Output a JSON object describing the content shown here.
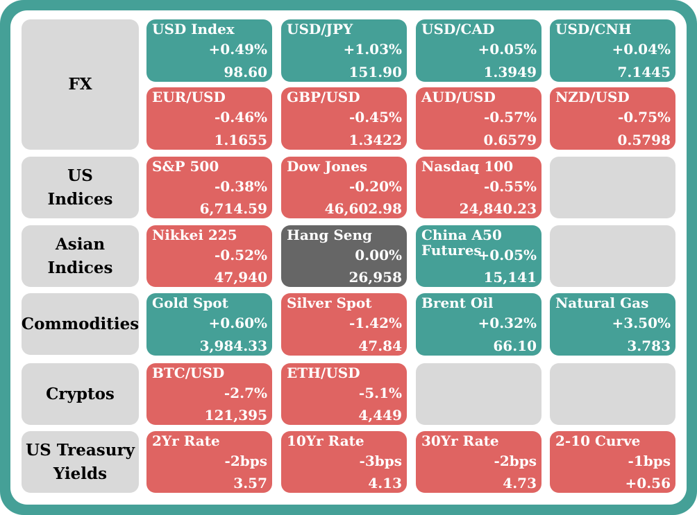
{
  "categories": {
    "fx": "FX",
    "us_indices": "US\nIndices",
    "asian_indices": "Asian\nIndices",
    "commodities": "Commodities",
    "cryptos": "Cryptos",
    "treasury": "US Treasury\nYields"
  },
  "colors": {
    "positive": "#45a097",
    "negative": "#df6462",
    "neutral": "#666666",
    "empty": "#d9d9d9",
    "frame": "#45a097"
  },
  "tiles": {
    "usd_index": {
      "name": "USD Index",
      "change": "+0.49%",
      "value": "98.60"
    },
    "usd_jpy": {
      "name": "USD/JPY",
      "change": "+1.03%",
      "value": "151.90"
    },
    "usd_cad": {
      "name": "USD/CAD",
      "change": "+0.05%",
      "value": "1.3949"
    },
    "usd_cnh": {
      "name": "USD/CNH",
      "change": "+0.04%",
      "value": "7.1445"
    },
    "eur_usd": {
      "name": "EUR/USD",
      "change": "-0.46%",
      "value": "1.1655"
    },
    "gbp_usd": {
      "name": "GBP/USD",
      "change": "-0.45%",
      "value": "1.3422"
    },
    "aud_usd": {
      "name": "AUD/USD",
      "change": "-0.57%",
      "value": "0.6579"
    },
    "nzd_usd": {
      "name": "NZD/USD",
      "change": "-0.75%",
      "value": "0.5798"
    },
    "sp500": {
      "name": "S&P 500",
      "change": "-0.38%",
      "value": "6,714.59"
    },
    "dow": {
      "name": "Dow Jones",
      "change": "-0.20%",
      "value": "46,602.98"
    },
    "nasdaq": {
      "name": "Nasdaq 100",
      "change": "-0.55%",
      "value": "24,840.23"
    },
    "nikkei": {
      "name": "Nikkei 225",
      "change": "-0.52%",
      "value": "47,940"
    },
    "hang_seng": {
      "name": "Hang Seng",
      "change": "0.00%",
      "value": "26,958"
    },
    "china_a50": {
      "name": "China A50\nFutures",
      "change": "+0.05%",
      "value": "15,141"
    },
    "gold": {
      "name": "Gold Spot",
      "change": "+0.60%",
      "value": "3,984.33"
    },
    "silver": {
      "name": "Silver Spot",
      "change": "-1.42%",
      "value": "47.84"
    },
    "brent": {
      "name": "Brent Oil",
      "change": "+0.32%",
      "value": "66.10"
    },
    "natgas": {
      "name": "Natural Gas",
      "change": "+3.50%",
      "value": "3.783"
    },
    "btc": {
      "name": "BTC/USD",
      "change": "-2.7%",
      "value": "121,395"
    },
    "eth": {
      "name": "ETH/USD",
      "change": "-5.1%",
      "value": "4,449"
    },
    "rate_2yr": {
      "name": "2Yr Rate",
      "change": "-2bps",
      "value": "3.57"
    },
    "rate_10yr": {
      "name": "10Yr Rate",
      "change": "-3bps",
      "value": "4.13"
    },
    "rate_30yr": {
      "name": "30Yr Rate",
      "change": "-2bps",
      "value": "4.73"
    },
    "curve_2_10": {
      "name": "2-10 Curve",
      "change": "-1bps",
      "value": "+0.56"
    }
  }
}
